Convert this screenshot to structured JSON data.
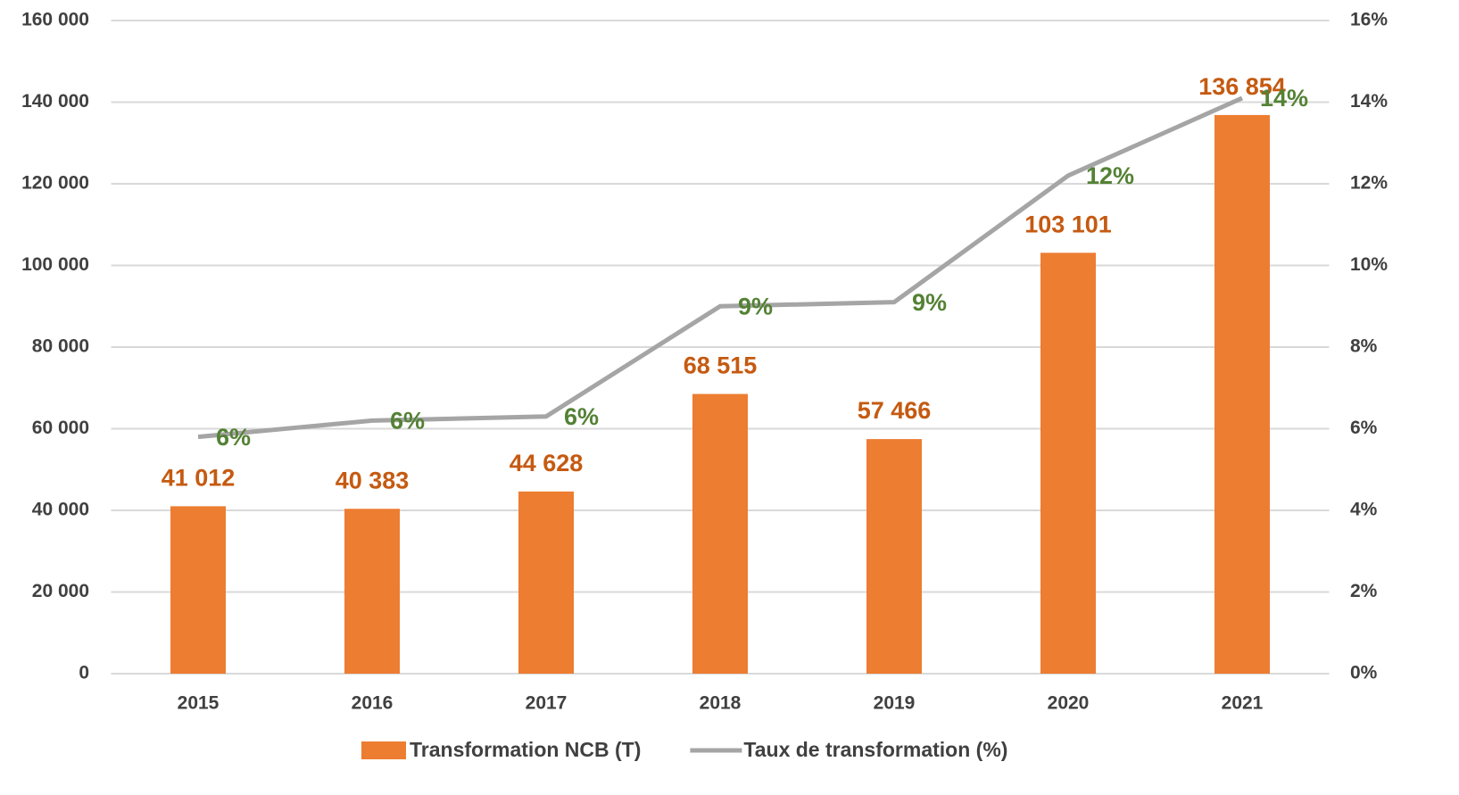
{
  "chart_data": {
    "type": "bar_line",
    "categories": [
      "2015",
      "2016",
      "2017",
      "2018",
      "2019",
      "2020",
      "2021"
    ],
    "series": [
      {
        "name": "Transformation NCB (T)",
        "color": "#ed7d31",
        "type": "bar",
        "values": [
          41012,
          40383,
          44628,
          68515,
          57466,
          103101,
          136854
        ],
        "value_labels": [
          "41 012",
          "40 383",
          "44 628",
          "68 515",
          "57 466",
          "103 101",
          "136 854"
        ],
        "label_color": "#c55a11"
      },
      {
        "name": "Taux de transformation (%)",
        "color": "#a5a5a5",
        "type": "line",
        "axis": "y2",
        "values": [
          5.8,
          6.2,
          6.3,
          9.0,
          9.1,
          12.2,
          14.1
        ],
        "value_labels": [
          "6%",
          "6%",
          "6%",
          "9%",
          "9%",
          "12%",
          "14%"
        ],
        "label_color": "#548235"
      }
    ],
    "ylim": [
      0,
      160000
    ],
    "yticks": [
      0,
      {
        "value": 20000,
        "label": "20 000"
      },
      {
        "value": 40000,
        "label": "40 000"
      },
      {
        "value": 60000,
        "label": "60 000"
      },
      {
        "value": 80000,
        "label": "80 000"
      },
      {
        "value": 100000,
        "label": "100 000"
      },
      {
        "value": 120000,
        "label": "120 000"
      },
      {
        "value": 140000,
        "label": "140 000"
      },
      {
        "value": 160000,
        "label": "160 000"
      }
    ],
    "y2lim": [
      0,
      16
    ],
    "y2ticks": [
      {
        "value": 0,
        "label": "0%"
      },
      {
        "value": 2,
        "label": "2%"
      },
      {
        "value": 4,
        "label": "4%"
      },
      {
        "value": 6,
        "label": "6%"
      },
      {
        "value": 8,
        "label": "8%"
      },
      {
        "value": 10,
        "label": "10%"
      },
      {
        "value": 12,
        "label": "12%"
      },
      {
        "value": 14,
        "label": "14%"
      },
      {
        "value": 16,
        "label": "16%"
      }
    ],
    "grid": true,
    "legend": "bottom"
  }
}
